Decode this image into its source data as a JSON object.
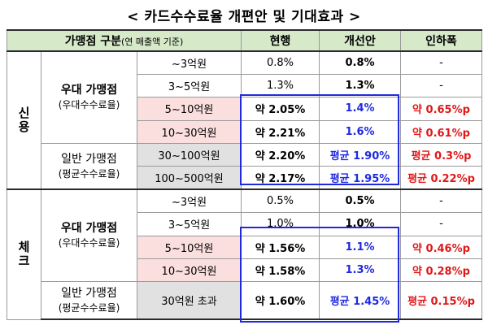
{
  "title": "< 카드수수료율 개편안 및 기대효과 >",
  "header": {
    "group_label": "가맹점 구분",
    "group_note": "(연 매출액 기준)",
    "current": "현행",
    "proposed": "개선안",
    "reduction": "인하폭"
  },
  "credit": {
    "category": "신용",
    "preferred": {
      "label": "우대 가맹점",
      "sub": "(우대수수료율)"
    },
    "general": {
      "label": "일반 가맹점",
      "sub": "(평균수수료율)"
    },
    "rows": [
      {
        "range": "~3억원",
        "current": "0.8%",
        "proposed": "0.8%",
        "reduction": "-"
      },
      {
        "range": "3~5억원",
        "current": "1.3%",
        "proposed": "1.3%",
        "reduction": "-"
      },
      {
        "range": "5~10억원",
        "current": "약 2.05%",
        "proposed": "1.4%",
        "reduction": "약 0.65%p"
      },
      {
        "range": "10~30억원",
        "current": "약 2.21%",
        "proposed": "1.6%",
        "reduction": "약 0.61%p"
      },
      {
        "range": "30~100억원",
        "current": "약 2.20%",
        "proposed": "평균 1.90%",
        "reduction": "평균 0.3%p"
      },
      {
        "range": "100~500억원",
        "current": "약 2.17%",
        "proposed": "평균 1.95%",
        "reduction": "평균 0.22%p"
      }
    ]
  },
  "check": {
    "category": "체크",
    "preferred": {
      "label": "우대 가맹점",
      "sub": "(우대수수료율)"
    },
    "general": {
      "label": "일반 가맹점",
      "sub": "(평균수수료율)"
    },
    "rows": [
      {
        "range": "~3억원",
        "current": "0.5%",
        "proposed": "0.5%",
        "reduction": "-"
      },
      {
        "range": "3~5억원",
        "current": "1.0%",
        "proposed": "1.0%",
        "reduction": "-"
      },
      {
        "range": "5~10억원",
        "current": "약 1.56%",
        "proposed": "1.1%",
        "reduction": "약 0.46%p"
      },
      {
        "range": "10~30억원",
        "current": "약 1.58%",
        "proposed": "1.3%",
        "reduction": "약 0.28%p"
      },
      {
        "range": "30억원 초과",
        "current": "약 1.60%",
        "proposed": "평균 1.45%",
        "reduction": "평균 0.15%p"
      }
    ]
  },
  "colors": {
    "header_bg": "#d6e9c8",
    "pink_bg": "#fbdede",
    "gray_bg": "#e1e1e1",
    "blue": "#1f2ae0",
    "red": "#e01818"
  }
}
